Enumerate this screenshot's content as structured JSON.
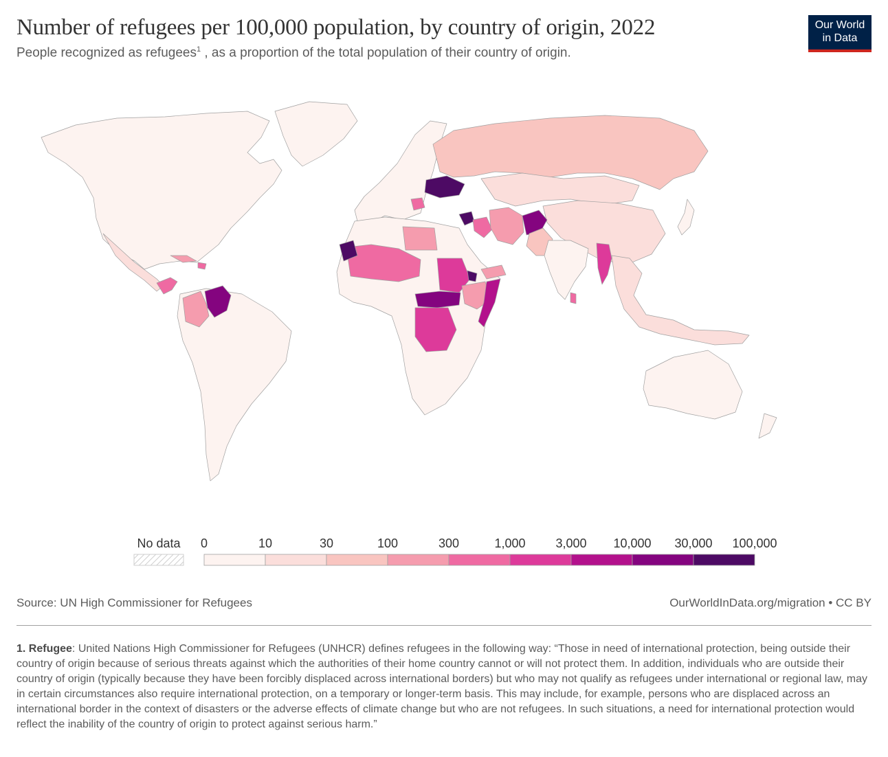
{
  "header": {
    "title": "Number of refugees per 100,000 population, by country of origin, 2022",
    "subtitle_pre": "People recognized as refugees",
    "subtitle_sup": "1",
    "subtitle_post": " , as a proportion of the total population of their country of origin."
  },
  "logo": {
    "line1": "Our World",
    "line2": "in Data",
    "bg_color": "#002147",
    "accent_color": "#ce261e"
  },
  "chart_data": {
    "type": "choropleth",
    "title": "Number of refugees per 100,000 population, by country of origin, 2022",
    "year": 2022,
    "legend": {
      "no_data_label": "No data",
      "tick_labels": [
        "0",
        "10",
        "30",
        "100",
        "300",
        "1,000",
        "3,000",
        "10,000",
        "30,000",
        "100,000"
      ],
      "bin_colors": [
        "#fdf3f0",
        "#fbdedb",
        "#f9c5c0",
        "#f59cae",
        "#ef6aa2",
        "#dd3a9a",
        "#b3118c",
        "#84047f",
        "#4d0a64"
      ]
    },
    "regions": [
      {
        "name": "North America",
        "bin": 0
      },
      {
        "name": "Greenland",
        "bin": 0
      },
      {
        "name": "Mexico",
        "bin": 1
      },
      {
        "name": "Guatemala / Honduras / El Salvador",
        "bin": 4
      },
      {
        "name": "Haiti",
        "bin": 4
      },
      {
        "name": "Cuba",
        "bin": 3
      },
      {
        "name": "Venezuela",
        "bin": 7
      },
      {
        "name": "Colombia",
        "bin": 3
      },
      {
        "name": "South America (other)",
        "bin": 0
      },
      {
        "name": "Europe",
        "bin": 0
      },
      {
        "name": "Ukraine",
        "bin": 8
      },
      {
        "name": "Bosnia / Serbia / Kosovo",
        "bin": 4
      },
      {
        "name": "Russia",
        "bin": 2
      },
      {
        "name": "Kazakhstan / Mongolia",
        "bin": 1
      },
      {
        "name": "China",
        "bin": 1
      },
      {
        "name": "Syria",
        "bin": 8
      },
      {
        "name": "Iraq",
        "bin": 4
      },
      {
        "name": "Iran",
        "bin": 3
      },
      {
        "name": "Afghanistan",
        "bin": 7
      },
      {
        "name": "Pakistan",
        "bin": 2
      },
      {
        "name": "India",
        "bin": 0
      },
      {
        "name": "Myanmar",
        "bin": 5
      },
      {
        "name": "Sri Lanka",
        "bin": 4
      },
      {
        "name": "Southeast Asia",
        "bin": 1
      },
      {
        "name": "Western Sahara",
        "bin": 8
      },
      {
        "name": "Mauritania / Mali / Niger",
        "bin": 4
      },
      {
        "name": "Libya / Chad",
        "bin": 3
      },
      {
        "name": "Sudan",
        "bin": 5
      },
      {
        "name": "Eritrea",
        "bin": 8
      },
      {
        "name": "Ethiopia",
        "bin": 3
      },
      {
        "name": "South Sudan / Central African Republic",
        "bin": 7
      },
      {
        "name": "DR Congo",
        "bin": 5
      },
      {
        "name": "Somalia",
        "bin": 6
      },
      {
        "name": "Yemen",
        "bin": 3
      },
      {
        "name": "Southern Africa",
        "bin": 0
      },
      {
        "name": "Australia",
        "bin": 0
      }
    ]
  },
  "footer": {
    "source": "Source: UN High Commissioner for Refugees",
    "credit": "OurWorldInData.org/migration • CC BY",
    "footnote_label": "1. Refugee",
    "footnote_text": ": United Nations High Commissioner for Refugees (UNHCR) defines refugees in the following way: “Those in need of international protection, being outside their country of origin because of serious threats against which the authorities of their home country cannot or will not protect them. In addition, individuals who are outside their country of origin (typically because they have been forcibly displaced across international borders) but who may not qualify as refugees under international or regional law, may in certain circumstances also require international protection, on a temporary or longer-term basis. This may include, for example, persons who are displaced across an international border in the context of disasters or the adverse effects of climate change but who are not refugees. In such situations, a need for international protection would reflect the inability of the country of origin to protect against serious harm.”"
  }
}
